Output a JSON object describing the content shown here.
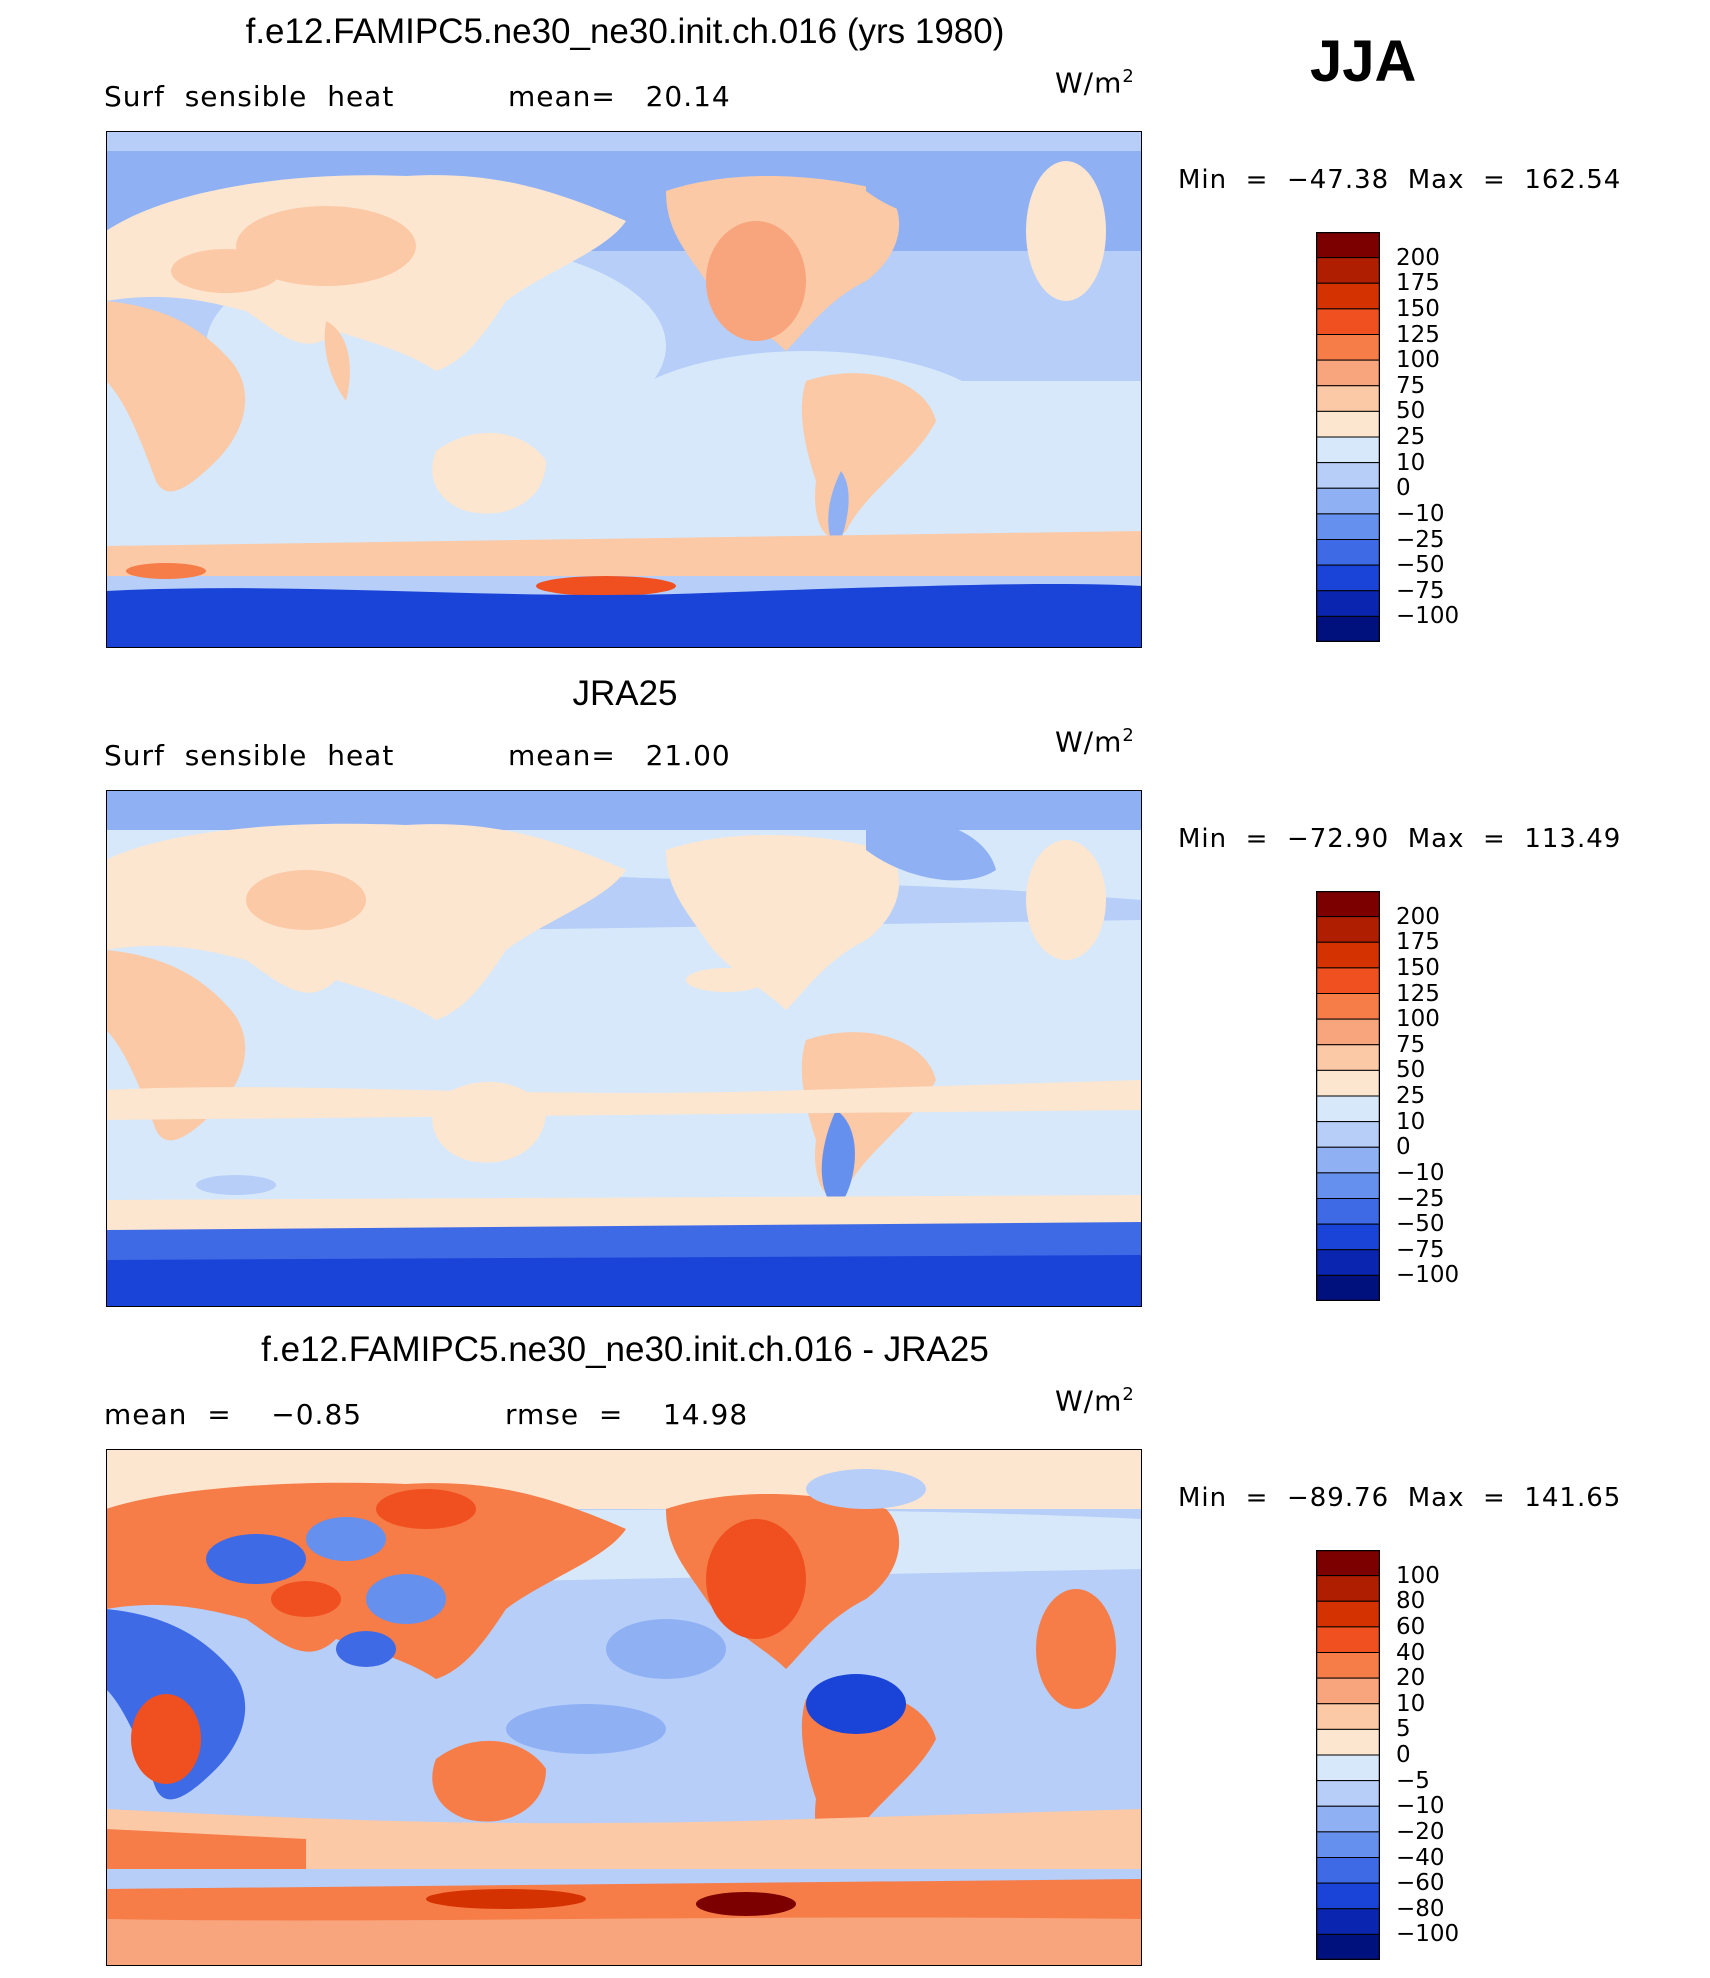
{
  "season": "JJA",
  "panels": [
    {
      "title": "f.e12.FAMIPC5.ne30_ne30.init.ch.016 (yrs 1980)",
      "left_text": "Surf  sensible  heat",
      "mid_text": "mean=   20.14",
      "units_base": "W/m",
      "units_sup": "2",
      "minmax": "Min  =  −47.38  Max  =  162.54",
      "levels": [
        "200",
        "175",
        "150",
        "125",
        "100",
        "75",
        "50",
        "25",
        "10",
        "0",
        "−10",
        "−25",
        "−50",
        "−75",
        "−100"
      ],
      "colors": [
        "#7d0000",
        "#b01e00",
        "#d43200",
        "#f05020",
        "#f67c48",
        "#f8a47c",
        "#fbc9a6",
        "#fde6d0",
        "#d6e8fa",
        "#b6cef8",
        "#8fb1f4",
        "#6690ee",
        "#3f6ae6",
        "#1a43d8",
        "#0a25b0",
        "#00107c"
      ]
    },
    {
      "title": "JRA25",
      "left_text": "Surf  sensible  heat",
      "mid_text": "mean=   21.00",
      "units_base": "W/m",
      "units_sup": "2",
      "minmax": "Min  =  −72.90  Max  =  113.49",
      "levels": [
        "200",
        "175",
        "150",
        "125",
        "100",
        "75",
        "50",
        "25",
        "10",
        "0",
        "−10",
        "−25",
        "−50",
        "−75",
        "−100"
      ],
      "colors": [
        "#7d0000",
        "#b01e00",
        "#d43200",
        "#f05020",
        "#f67c48",
        "#f8a47c",
        "#fbc9a6",
        "#fde6d0",
        "#d6e8fa",
        "#b6cef8",
        "#8fb1f4",
        "#6690ee",
        "#3f6ae6",
        "#1a43d8",
        "#0a25b0",
        "#00107c"
      ]
    },
    {
      "title": "f.e12.FAMIPC5.ne30_ne30.init.ch.016 - JRA25",
      "left_text": "mean  =    −0.85",
      "mid_text": "rmse  =    14.98",
      "units_base": "W/m",
      "units_sup": "2",
      "minmax": "Min  =  −89.76  Max  =  141.65",
      "levels": [
        "100",
        "80",
        "60",
        "40",
        "20",
        "10",
        "5",
        "0",
        "−5",
        "−10",
        "−20",
        "−40",
        "−60",
        "−80",
        "−100"
      ],
      "colors": [
        "#7d0000",
        "#b01e00",
        "#d43200",
        "#f05020",
        "#f67c48",
        "#f8a47c",
        "#fbc9a6",
        "#fde6d0",
        "#d6e8fa",
        "#b6cef8",
        "#8fb1f4",
        "#6690ee",
        "#3f6ae6",
        "#1a43d8",
        "#0a25b0",
        "#00107c"
      ]
    }
  ]
}
